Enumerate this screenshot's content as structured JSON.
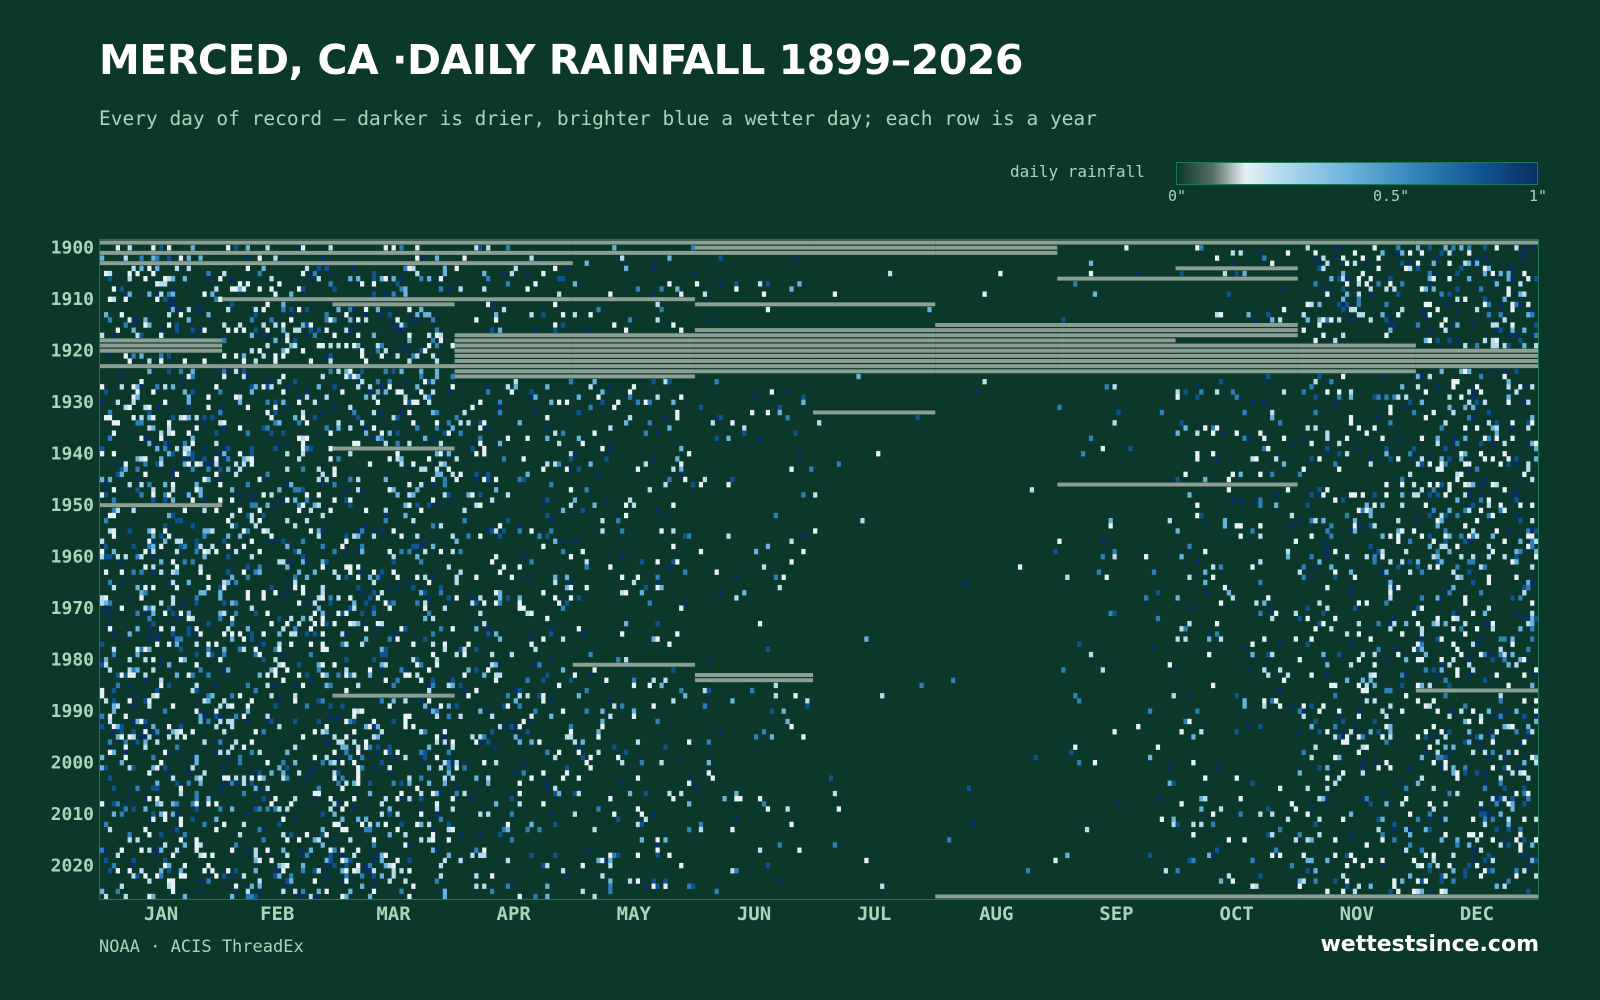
{
  "colors": {
    "background": "#0b382a",
    "title": "#ffffff",
    "text": "#a9d6ba",
    "missing": "#8d9f95",
    "frame": "#1e7a52",
    "scale": [
      "#0b382a",
      "#e8f1f6",
      "#b8dbee",
      "#6ab2dc",
      "#2f7fb8",
      "#105392",
      "#0a2f66"
    ]
  },
  "chart_data": {
    "type": "heatmap",
    "title": "MERCED, CA ·DAILY RAINFALL 1899–2026",
    "subtitle": "Every day of record — darker is drier, brighter blue a wetter day; each row is a year",
    "x_categories": [
      "JAN",
      "FEB",
      "MAR",
      "APR",
      "MAY",
      "JUN",
      "JUL",
      "AUG",
      "SEP",
      "OCT",
      "NOV",
      "DEC"
    ],
    "year_range": [
      1899,
      2026
    ],
    "y_tick_labels": [
      "1900",
      "1910",
      "1920",
      "1930",
      "1940",
      "1950",
      "1960",
      "1970",
      "1980",
      "1990",
      "2000",
      "2010",
      "2020"
    ],
    "color_scale": {
      "label": "daily rainfall",
      "tick_labels": [
        "0\"",
        "0.5\"",
        "1\""
      ],
      "range": [
        0,
        1
      ],
      "unit": "in"
    },
    "monthly_wet_day_share": [
      0.19,
      0.18,
      0.17,
      0.11,
      0.06,
      0.025,
      0.004,
      0.004,
      0.018,
      0.06,
      0.13,
      0.18
    ],
    "missing_data": [
      {
        "year_from": 1899,
        "year_to": 1899,
        "month_from": 0,
        "month_to": 11
      },
      {
        "year_from": 1900,
        "year_to": 1901,
        "month_from": 5,
        "month_to": 7
      },
      {
        "year_from": 1901,
        "year_to": 1901,
        "month_from": 0,
        "month_to": 4
      },
      {
        "year_from": 1903,
        "year_to": 1903,
        "month_from": 2,
        "month_to": 3
      },
      {
        "year_from": 1903,
        "year_to": 1903,
        "month_from": 0,
        "month_to": 1
      },
      {
        "year_from": 1904,
        "year_to": 1904,
        "month_from": 9,
        "month_to": 9
      },
      {
        "year_from": 1906,
        "year_to": 1906,
        "month_from": 8,
        "month_to": 9
      },
      {
        "year_from": 1910,
        "year_to": 1910,
        "month_from": 1,
        "month_to": 4
      },
      {
        "year_from": 1911,
        "year_to": 1911,
        "month_from": 5,
        "month_to": 6
      },
      {
        "year_from": 1911,
        "year_to": 1911,
        "month_from": 2,
        "month_to": 2
      },
      {
        "year_from": 1915,
        "year_to": 1915,
        "month_from": 7,
        "month_to": 9
      },
      {
        "year_from": 1916,
        "year_to": 1917,
        "month_from": 5,
        "month_to": 9
      },
      {
        "year_from": 1917,
        "year_to": 1917,
        "month_from": 3,
        "month_to": 4
      },
      {
        "year_from": 1918,
        "year_to": 1920,
        "month_from": 0,
        "month_to": 0
      },
      {
        "year_from": 1918,
        "year_to": 1925,
        "month_from": 3,
        "month_to": 4
      },
      {
        "year_from": 1918,
        "year_to": 1922,
        "month_from": 5,
        "month_to": 8
      },
      {
        "year_from": 1919,
        "year_to": 1923,
        "month_from": 9,
        "month_to": 10
      },
      {
        "year_from": 1920,
        "year_to": 1923,
        "month_from": 11,
        "month_to": 11
      },
      {
        "year_from": 1922,
        "year_to": 1924,
        "month_from": 5,
        "month_to": 10
      },
      {
        "year_from": 1923,
        "year_to": 1923,
        "month_from": 0,
        "month_to": 2
      },
      {
        "year_from": 1932,
        "year_to": 1932,
        "month_from": 6,
        "month_to": 6
      },
      {
        "year_from": 1939,
        "year_to": 1939,
        "month_from": 2,
        "month_to": 2
      },
      {
        "year_from": 1946,
        "year_to": 1946,
        "month_from": 8,
        "month_to": 9
      },
      {
        "year_from": 1950,
        "year_to": 1950,
        "month_from": 0,
        "month_to": 0
      },
      {
        "year_from": 1986,
        "year_to": 1986,
        "month_from": 11,
        "month_to": 11
      },
      {
        "year_from": 1981,
        "year_to": 1981,
        "month_from": 4,
        "month_to": 4
      },
      {
        "year_from": 1983,
        "year_to": 1984,
        "month_from": 5,
        "month_to": 5
      },
      {
        "year_from": 1987,
        "year_to": 1987,
        "month_from": 2,
        "month_to": 2
      },
      {
        "year_from": 2026,
        "year_to": 2026,
        "month_from": 7,
        "month_to": 11
      }
    ]
  },
  "source": "NOAA · ACIS ThreadEx",
  "brand": "wettestsince.com"
}
